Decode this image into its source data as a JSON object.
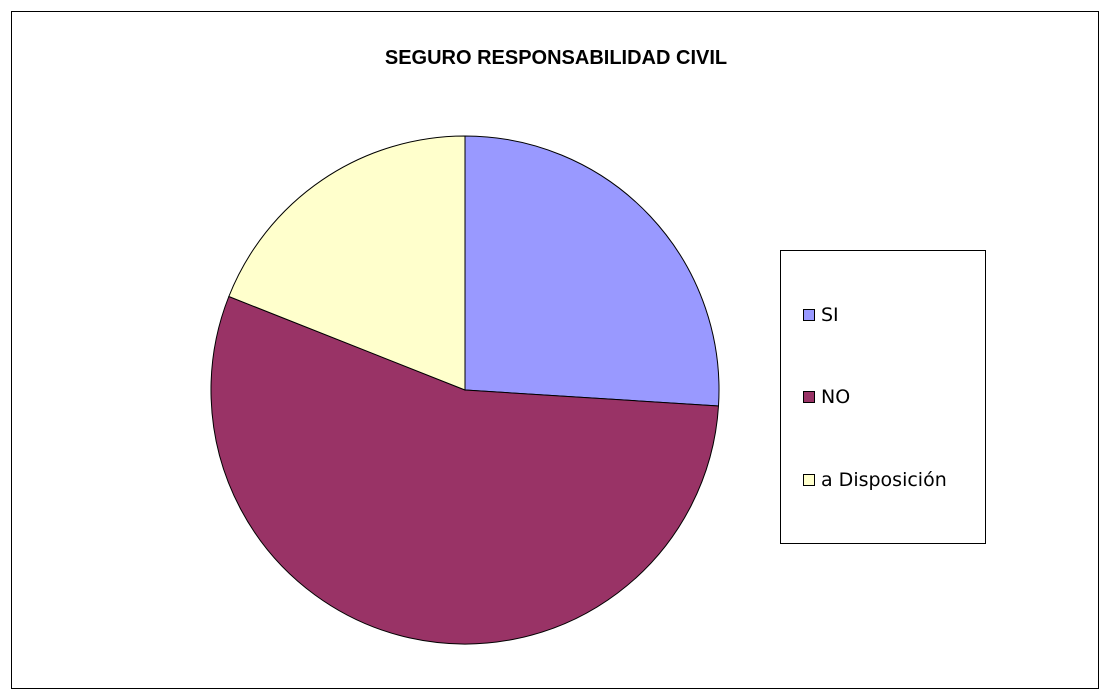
{
  "chart_data": {
    "type": "pie",
    "title": "SEGURO RESPONSABILIDAD CIVIL",
    "categories": [
      "SI",
      "NO",
      "a Disposición"
    ],
    "values": [
      26,
      55,
      19
    ],
    "colors": [
      "#9999FF",
      "#993366",
      "#FFFFCC"
    ],
    "legend_position": "right",
    "start_angle": "12 o'clock, clockwise"
  }
}
